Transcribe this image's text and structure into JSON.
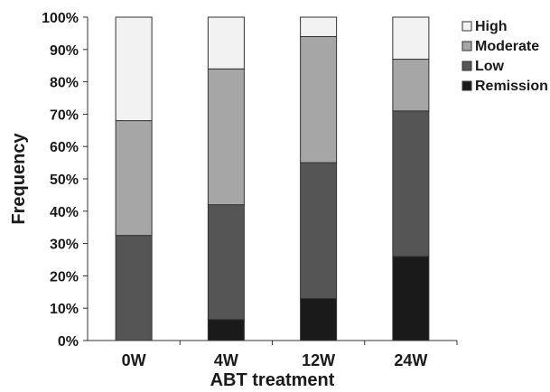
{
  "chart_data": {
    "type": "bar",
    "stacked": true,
    "title": "",
    "xlabel": "ABT treatment",
    "ylabel": "Frequency",
    "ylim": [
      0,
      100
    ],
    "y_tick_step": 10,
    "y_tick_suffix": "%",
    "categories": [
      "0W",
      "4W",
      "12W",
      "24W"
    ],
    "series": [
      {
        "name": "Remission",
        "color": "#1a1a1a",
        "values": [
          0,
          6.5,
          13,
          26
        ]
      },
      {
        "name": "Low",
        "color": "#555555",
        "values": [
          32.5,
          35.5,
          42,
          45
        ]
      },
      {
        "name": "Moderate",
        "color": "#a6a6a6",
        "values": [
          35.5,
          42,
          39,
          16
        ]
      },
      {
        "name": "High",
        "color": "#f2f2f2",
        "values": [
          32,
          16,
          6,
          13
        ]
      }
    ],
    "legend": {
      "placement": "top-right",
      "order": [
        "High",
        "Moderate",
        "Low",
        "Remission"
      ]
    },
    "grid": false
  }
}
